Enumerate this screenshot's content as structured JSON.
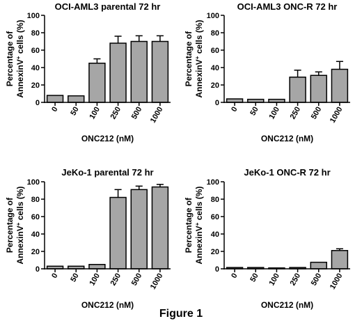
{
  "figure_caption": "Figure 1",
  "chart_data": [
    {
      "type": "bar",
      "title": "OCI-AML3 parental 72 hr",
      "ylabel_line1": "Percentage of",
      "ylabel_line2_pre": "AnnexinV",
      "ylabel_line2_sup": "+",
      "ylabel_line2_post": " cells (%)",
      "xlabel": "ONC212 (nM)",
      "categories": [
        "0",
        "50",
        "100",
        "250",
        "500",
        "1000"
      ],
      "values": [
        8,
        7.5,
        45,
        68,
        70,
        70
      ],
      "errors": [
        0,
        0,
        5,
        8,
        6.5,
        6.5
      ],
      "ylim": [
        0,
        100
      ],
      "yticks": [
        0,
        20,
        40,
        60,
        80,
        100
      ],
      "bar_color": "#a6a6a6"
    },
    {
      "type": "bar",
      "title": "OCI-AML3 ONC-R 72 hr",
      "ylabel_line1": "Percentage of",
      "ylabel_line2_pre": "AnnexinV",
      "ylabel_line2_sup": "+",
      "ylabel_line2_post": " cells (%)",
      "xlabel": "ONC212 (nM)",
      "categories": [
        "0",
        "50",
        "100",
        "250",
        "500",
        "1000"
      ],
      "values": [
        4,
        3.5,
        3.5,
        29,
        31,
        38
      ],
      "errors": [
        0,
        0,
        0,
        8,
        4,
        9
      ],
      "ylim": [
        0,
        100
      ],
      "yticks": [
        0,
        20,
        40,
        60,
        80,
        100
      ],
      "bar_color": "#a6a6a6"
    },
    {
      "type": "bar",
      "title": "JeKo-1 parental 72 hr",
      "ylabel_line1": "Percentage of",
      "ylabel_line2_pre": "AnnexinV",
      "ylabel_line2_sup": "+",
      "ylabel_line2_post": " cells (%)",
      "xlabel": "ONC212 (nM)",
      "categories": [
        "0",
        "50",
        "100",
        "250",
        "500",
        "1000"
      ],
      "values": [
        3,
        3,
        5,
        82,
        91,
        94
      ],
      "errors": [
        0,
        0,
        0,
        9,
        4,
        3
      ],
      "ylim": [
        0,
        100
      ],
      "yticks": [
        0,
        20,
        40,
        60,
        80,
        100
      ],
      "bar_color": "#a6a6a6"
    },
    {
      "type": "bar",
      "title": "JeKo-1 ONC-R 72 hr",
      "ylabel_line1": "Percentage of",
      "ylabel_line2_pre": "AnnexinV",
      "ylabel_line2_sup": "+",
      "ylabel_line2_post": " cells (%)",
      "xlabel": "ONC212 (nM)",
      "categories": [
        "0",
        "50",
        "100",
        "250",
        "500",
        "1000"
      ],
      "values": [
        1.5,
        1.5,
        1,
        1.5,
        7.5,
        21
      ],
      "errors": [
        0,
        0,
        0,
        0,
        0,
        2
      ],
      "ylim": [
        0,
        100
      ],
      "yticks": [
        0,
        20,
        40,
        60,
        80,
        100
      ],
      "bar_color": "#a6a6a6"
    }
  ]
}
